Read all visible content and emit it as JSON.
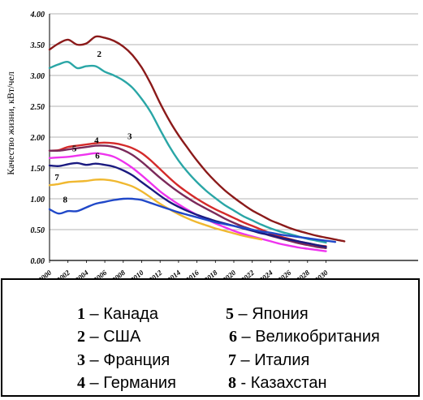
{
  "chart_data": {
    "type": "line",
    "ylabel": "Качество жизни, кВт/чел",
    "xlim": [
      2000,
      2040
    ],
    "ylim": [
      0,
      4
    ],
    "x_ticks": [
      "2000",
      "2002",
      "2004",
      "2006",
      "2008",
      "2010",
      "2012",
      "2014",
      "2016",
      "2018",
      "2020",
      "2022",
      "2024",
      "2026",
      "2028",
      "2030"
    ],
    "y_ticks": [
      "0.00",
      "0.50",
      "1.00",
      "1.50",
      "2.00",
      "2.50",
      "3.00",
      "3.50",
      "4.00"
    ],
    "grid": "horizontal",
    "series": [
      {
        "id": "1",
        "color": "#8b1a1a",
        "points": [
          [
            2000,
            3.42
          ],
          [
            2001,
            3.52
          ],
          [
            2002,
            3.58
          ],
          [
            2003,
            3.5
          ],
          [
            2004,
            3.52
          ],
          [
            2005,
            3.63
          ],
          [
            2006,
            3.61
          ],
          [
            2007,
            3.56
          ],
          [
            2008,
            3.47
          ],
          [
            2009,
            3.33
          ],
          [
            2010,
            3.13
          ],
          [
            2011,
            2.86
          ],
          [
            2012,
            2.55
          ],
          [
            2013,
            2.27
          ],
          [
            2014,
            2.03
          ],
          [
            2015,
            1.82
          ],
          [
            2016,
            1.62
          ],
          [
            2017,
            1.44
          ],
          [
            2018,
            1.28
          ],
          [
            2019,
            1.14
          ],
          [
            2020,
            1.02
          ],
          [
            2021,
            0.91
          ],
          [
            2022,
            0.81
          ],
          [
            2023,
            0.73
          ],
          [
            2024,
            0.65
          ],
          [
            2025,
            0.59
          ],
          [
            2026,
            0.53
          ],
          [
            2027,
            0.48
          ],
          [
            2028,
            0.44
          ],
          [
            2029,
            0.4
          ],
          [
            2030,
            0.37
          ],
          [
            2031,
            0.34
          ],
          [
            2032,
            0.31
          ]
        ]
      },
      {
        "id": "2",
        "color": "#2aa6a6",
        "points": [
          [
            2000,
            3.12
          ],
          [
            2001,
            3.18
          ],
          [
            2002,
            3.22
          ],
          [
            2003,
            3.12
          ],
          [
            2004,
            3.15
          ],
          [
            2005,
            3.15
          ],
          [
            2006,
            3.06
          ],
          [
            2007,
            3.0
          ],
          [
            2008,
            2.92
          ],
          [
            2009,
            2.8
          ],
          [
            2010,
            2.62
          ],
          [
            2011,
            2.4
          ],
          [
            2012,
            2.12
          ],
          [
            2013,
            1.85
          ],
          [
            2014,
            1.62
          ],
          [
            2015,
            1.43
          ],
          [
            2016,
            1.27
          ],
          [
            2017,
            1.13
          ],
          [
            2018,
            1.01
          ],
          [
            2019,
            0.9
          ],
          [
            2020,
            0.81
          ],
          [
            2021,
            0.72
          ],
          [
            2022,
            0.65
          ],
          [
            2023,
            0.58
          ],
          [
            2024,
            0.52
          ],
          [
            2025,
            0.47
          ],
          [
            2026,
            0.43
          ],
          [
            2027,
            0.39
          ],
          [
            2028,
            0.35
          ],
          [
            2029,
            0.32
          ],
          [
            2030,
            0.29
          ]
        ]
      },
      {
        "id": "3",
        "color": "#d42a2a",
        "points": [
          [
            2000,
            1.78
          ],
          [
            2001,
            1.79
          ],
          [
            2002,
            1.84
          ],
          [
            2003,
            1.86
          ],
          [
            2004,
            1.88
          ],
          [
            2005,
            1.9
          ],
          [
            2006,
            1.91
          ],
          [
            2007,
            1.9
          ],
          [
            2008,
            1.87
          ],
          [
            2009,
            1.82
          ],
          [
            2010,
            1.74
          ],
          [
            2011,
            1.62
          ],
          [
            2012,
            1.48
          ],
          [
            2013,
            1.34
          ],
          [
            2014,
            1.21
          ],
          [
            2015,
            1.1
          ],
          [
            2016,
            1.0
          ],
          [
            2017,
            0.91
          ],
          [
            2018,
            0.83
          ],
          [
            2019,
            0.76
          ],
          [
            2020,
            0.69
          ],
          [
            2021,
            0.62
          ],
          [
            2022,
            0.56
          ],
          [
            2023,
            0.5
          ],
          [
            2024,
            0.44
          ],
          [
            2025,
            0.39
          ],
          [
            2026,
            0.35
          ],
          [
            2027,
            0.31
          ],
          [
            2028,
            0.28
          ],
          [
            2029,
            0.25
          ],
          [
            2030,
            0.23
          ]
        ]
      },
      {
        "id": "4",
        "color": "#7a2a5a",
        "points": [
          [
            2000,
            1.78
          ],
          [
            2001,
            1.78
          ],
          [
            2002,
            1.8
          ],
          [
            2003,
            1.82
          ],
          [
            2004,
            1.84
          ],
          [
            2005,
            1.86
          ],
          [
            2006,
            1.86
          ],
          [
            2007,
            1.84
          ],
          [
            2008,
            1.79
          ],
          [
            2009,
            1.71
          ],
          [
            2010,
            1.6
          ],
          [
            2011,
            1.47
          ],
          [
            2012,
            1.34
          ],
          [
            2013,
            1.22
          ],
          [
            2014,
            1.11
          ],
          [
            2015,
            1.01
          ],
          [
            2016,
            0.92
          ],
          [
            2017,
            0.84
          ],
          [
            2018,
            0.76
          ],
          [
            2019,
            0.68
          ],
          [
            2020,
            0.61
          ],
          [
            2021,
            0.55
          ],
          [
            2022,
            0.5
          ],
          [
            2023,
            0.45
          ],
          [
            2024,
            0.4
          ],
          [
            2025,
            0.36
          ],
          [
            2026,
            0.32
          ],
          [
            2027,
            0.28
          ],
          [
            2028,
            0.25
          ],
          [
            2029,
            0.22
          ],
          [
            2030,
            0.2
          ]
        ]
      },
      {
        "id": "5",
        "color": "#ee33ee",
        "points": [
          [
            2000,
            1.66
          ],
          [
            2001,
            1.67
          ],
          [
            2002,
            1.68
          ],
          [
            2003,
            1.7
          ],
          [
            2004,
            1.72
          ],
          [
            2005,
            1.74
          ],
          [
            2006,
            1.72
          ],
          [
            2007,
            1.68
          ],
          [
            2008,
            1.6
          ],
          [
            2009,
            1.5
          ],
          [
            2010,
            1.38
          ],
          [
            2011,
            1.25
          ],
          [
            2012,
            1.12
          ],
          [
            2013,
            1.01
          ],
          [
            2014,
            0.91
          ],
          [
            2015,
            0.82
          ],
          [
            2016,
            0.74
          ],
          [
            2017,
            0.67
          ],
          [
            2018,
            0.6
          ],
          [
            2019,
            0.54
          ],
          [
            2020,
            0.48
          ],
          [
            2021,
            0.43
          ],
          [
            2022,
            0.39
          ],
          [
            2023,
            0.35
          ],
          [
            2024,
            0.31
          ],
          [
            2025,
            0.27
          ],
          [
            2026,
            0.24
          ],
          [
            2027,
            0.21
          ],
          [
            2028,
            0.19
          ],
          [
            2029,
            0.17
          ],
          [
            2030,
            0.15
          ]
        ]
      },
      {
        "id": "6",
        "color": "#1a1a80",
        "points": [
          [
            2000,
            1.54
          ],
          [
            2001,
            1.53
          ],
          [
            2002,
            1.56
          ],
          [
            2003,
            1.58
          ],
          [
            2004,
            1.55
          ],
          [
            2005,
            1.57
          ],
          [
            2006,
            1.55
          ],
          [
            2007,
            1.52
          ],
          [
            2008,
            1.46
          ],
          [
            2009,
            1.38
          ],
          [
            2010,
            1.27
          ],
          [
            2011,
            1.16
          ],
          [
            2012,
            1.05
          ],
          [
            2013,
            0.95
          ],
          [
            2014,
            0.87
          ],
          [
            2015,
            0.8
          ],
          [
            2016,
            0.74
          ],
          [
            2017,
            0.69
          ],
          [
            2018,
            0.64
          ],
          [
            2019,
            0.6
          ],
          [
            2020,
            0.56
          ],
          [
            2021,
            0.52
          ],
          [
            2022,
            0.48
          ],
          [
            2023,
            0.44
          ],
          [
            2024,
            0.41
          ],
          [
            2025,
            0.37
          ],
          [
            2026,
            0.34
          ],
          [
            2027,
            0.31
          ],
          [
            2028,
            0.28
          ],
          [
            2029,
            0.25
          ],
          [
            2030,
            0.22
          ]
        ]
      },
      {
        "id": "7",
        "color": "#f0b830",
        "points": [
          [
            2000,
            1.22
          ],
          [
            2001,
            1.24
          ],
          [
            2002,
            1.27
          ],
          [
            2003,
            1.28
          ],
          [
            2004,
            1.29
          ],
          [
            2005,
            1.31
          ],
          [
            2006,
            1.31
          ],
          [
            2007,
            1.29
          ],
          [
            2008,
            1.25
          ],
          [
            2009,
            1.2
          ],
          [
            2010,
            1.12
          ],
          [
            2011,
            1.02
          ],
          [
            2012,
            0.92
          ],
          [
            2013,
            0.83
          ],
          [
            2014,
            0.75
          ],
          [
            2015,
            0.68
          ],
          [
            2016,
            0.62
          ],
          [
            2017,
            0.57
          ],
          [
            2018,
            0.52
          ],
          [
            2019,
            0.48
          ],
          [
            2020,
            0.44
          ],
          [
            2021,
            0.4
          ],
          [
            2022,
            0.37
          ],
          [
            2023,
            0.34
          ]
        ]
      },
      {
        "id": "8",
        "color": "#2048c8",
        "points": [
          [
            2000,
            0.83
          ],
          [
            2001,
            0.76
          ],
          [
            2002,
            0.8
          ],
          [
            2003,
            0.8
          ],
          [
            2004,
            0.86
          ],
          [
            2005,
            0.92
          ],
          [
            2006,
            0.95
          ],
          [
            2007,
            0.98
          ],
          [
            2008,
            1.0
          ],
          [
            2009,
            1.0
          ],
          [
            2010,
            0.98
          ],
          [
            2011,
            0.93
          ],
          [
            2012,
            0.88
          ],
          [
            2013,
            0.83
          ],
          [
            2014,
            0.78
          ],
          [
            2015,
            0.74
          ],
          [
            2016,
            0.7
          ],
          [
            2017,
            0.66
          ],
          [
            2018,
            0.62
          ],
          [
            2019,
            0.59
          ],
          [
            2020,
            0.56
          ],
          [
            2021,
            0.53
          ],
          [
            2022,
            0.5
          ],
          [
            2023,
            0.47
          ],
          [
            2024,
            0.45
          ],
          [
            2025,
            0.42
          ],
          [
            2026,
            0.4
          ],
          [
            2027,
            0.38
          ],
          [
            2028,
            0.36
          ],
          [
            2029,
            0.34
          ],
          [
            2030,
            0.32
          ],
          [
            2031,
            0.3
          ]
        ]
      }
    ],
    "curve_labels": [
      {
        "text": "2",
        "x": 2005.4,
        "y": 3.3
      },
      {
        "text": "3",
        "x": 2008.7,
        "y": 1.97
      },
      {
        "text": "4",
        "x": 2005.1,
        "y": 1.9
      },
      {
        "text": "5",
        "x": 2002.7,
        "y": 1.77
      },
      {
        "text": "6",
        "x": 2005.2,
        "y": 1.65
      },
      {
        "text": "7",
        "x": 2000.8,
        "y": 1.3
      },
      {
        "text": "8",
        "x": 2001.7,
        "y": 0.94
      }
    ]
  },
  "legend": {
    "items": [
      {
        "num": "1",
        "text": " – Канада"
      },
      {
        "num": "5",
        "text": " – Япония"
      },
      {
        "num": "2",
        "text": " – США"
      },
      {
        "num": "6",
        "text": " – Великобритания"
      },
      {
        "num": "3",
        "text": " – Франция"
      },
      {
        "num": "7",
        "text": " – Италия"
      },
      {
        "num": "4",
        "text": " – Германия"
      },
      {
        "num": "8",
        "text": " - Казахстан"
      }
    ]
  }
}
